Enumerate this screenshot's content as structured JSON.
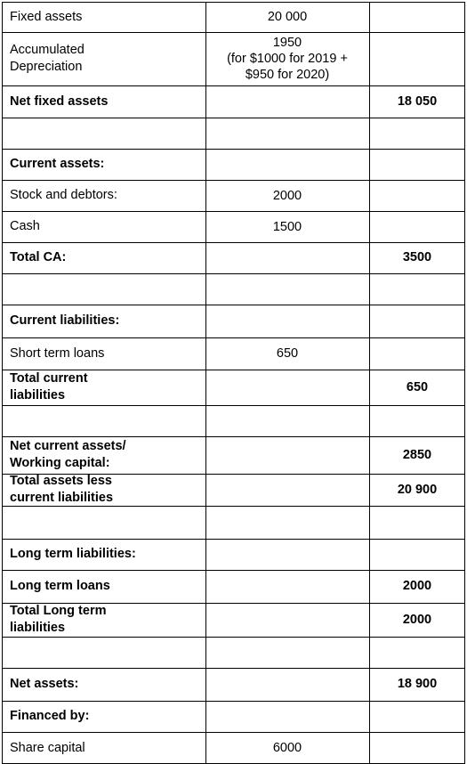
{
  "rows": [
    {
      "label": "Fixed assets",
      "bold": false,
      "mid": "20 000",
      "right": ""
    },
    {
      "label": "Accumulated\nDepreciation",
      "bold": false,
      "mid": "1950\n(for $1000 for 2019 +\n$950 for 2020)",
      "right": ""
    },
    {
      "label": "Net fixed assets",
      "bold": true,
      "mid": "",
      "right": "18 050"
    },
    {
      "label": "",
      "bold": false,
      "mid": "",
      "right": ""
    },
    {
      "label": "Current assets:",
      "bold": true,
      "mid": "",
      "right": ""
    },
    {
      "label": "Stock and debtors:",
      "bold": false,
      "mid": "2000",
      "right": ""
    },
    {
      "label": "Cash",
      "bold": false,
      "mid": "1500",
      "right": ""
    },
    {
      "label": "Total CA:",
      "bold": true,
      "mid": "",
      "right": "3500"
    },
    {
      "label": "",
      "bold": false,
      "mid": "",
      "right": ""
    },
    {
      "label": "Current liabilities:",
      "bold": true,
      "mid": "",
      "right": ""
    },
    {
      "label": "Short term loans",
      "bold": false,
      "mid": "650",
      "right": ""
    },
    {
      "label": "Total current\nliabilities",
      "bold": true,
      "mid": "",
      "right": "650"
    },
    {
      "label": "",
      "bold": false,
      "mid": "",
      "right": ""
    },
    {
      "label": "Net current assets/\nWorking capital:",
      "bold": true,
      "mid": "",
      "right": "2850"
    },
    {
      "label": "Total assets less\ncurrent liabilities",
      "bold": true,
      "mid": "",
      "right": "20 900"
    },
    {
      "label": "",
      "bold": false,
      "mid": "",
      "right": ""
    },
    {
      "label": "Long term liabilities:",
      "bold": true,
      "mid": "",
      "right": ""
    },
    {
      "label": "Long term loans",
      "bold": true,
      "mid": "",
      "right": "2000"
    },
    {
      "label": "Total Long term\nliabilities",
      "bold": true,
      "mid": "",
      "right": "2000"
    },
    {
      "label": "",
      "bold": false,
      "mid": "",
      "right": ""
    },
    {
      "label": "Net assets:",
      "bold": true,
      "mid": "",
      "right": "18 900"
    },
    {
      "label": "Financed by:",
      "bold": true,
      "mid": "",
      "right": ""
    },
    {
      "label": "Share capital",
      "bold": false,
      "mid": "6000",
      "right": ""
    }
  ]
}
